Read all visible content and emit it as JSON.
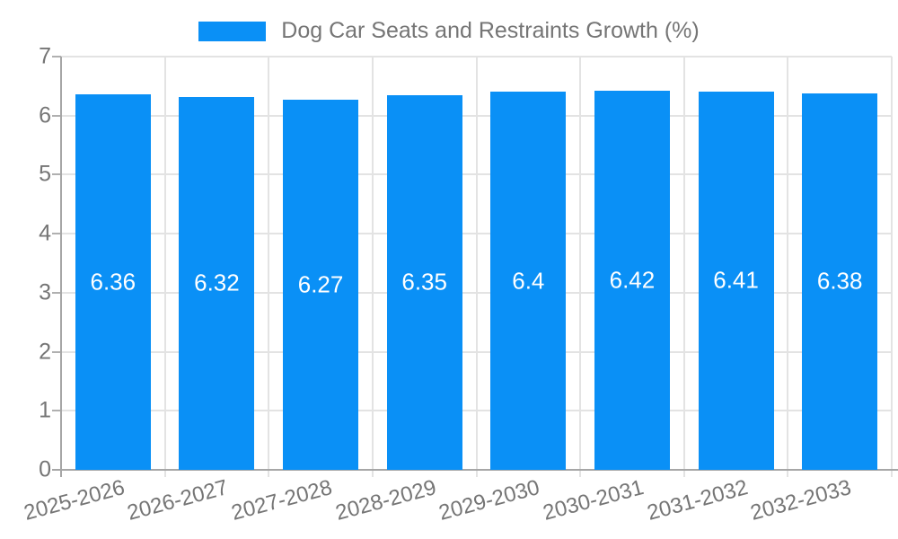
{
  "legend": {
    "title": "Dog Car Seats and Restraints Growth (%)"
  },
  "colors": {
    "bar": "#0a90f6",
    "grid": "#e3e3e3",
    "axis": "#a6a6a6",
    "text": "#757575",
    "value_label": "#ffffff",
    "background": "#ffffff"
  },
  "chart_data": {
    "type": "bar",
    "title": "Dog Car Seats and Restraints Growth (%)",
    "series_name": "Dog Car Seats and Restraints Growth (%)",
    "categories": [
      "2025-2026",
      "2026-2027",
      "2027-2028",
      "2028-2029",
      "2029-2030",
      "2030-2031",
      "2031-2032",
      "2032-2033"
    ],
    "values": [
      6.36,
      6.32,
      6.27,
      6.35,
      6.4,
      6.42,
      6.41,
      6.38
    ],
    "bar_labels": [
      "6.36",
      "6.32",
      "6.27",
      "6.35",
      "6.4",
      "6.42",
      "6.41",
      "6.38"
    ],
    "xlabel": "",
    "ylabel": "",
    "ylim": [
      0,
      7
    ],
    "yticks": [
      0,
      1,
      2,
      3,
      4,
      5,
      6,
      7
    ],
    "grid": true,
    "legend_position": "top",
    "xtick_rotation_deg": -15
  }
}
